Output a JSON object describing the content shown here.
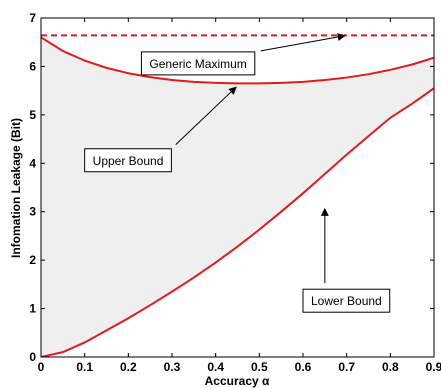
{
  "chart_data": {
    "type": "area",
    "xlabel": "Accuracy α",
    "ylabel": "Infomation Leakage (Bit)",
    "xlim": [
      0,
      0.9
    ],
    "ylim": [
      0,
      7
    ],
    "xticks": [
      "0",
      "0.1",
      "0.2",
      "0.3",
      "0.4",
      "0.5",
      "0.6",
      "0.7",
      "0.8",
      "0.9"
    ],
    "yticks": [
      "0",
      "1",
      "2",
      "3",
      "4",
      "5",
      "6",
      "7"
    ],
    "grid": false,
    "series": [
      {
        "name": "Upper Bound",
        "color": "#e41a1c",
        "style": "solid",
        "x": [
          0,
          0.05,
          0.1,
          0.15,
          0.2,
          0.25,
          0.3,
          0.35,
          0.4,
          0.45,
          0.5,
          0.55,
          0.6,
          0.65,
          0.7,
          0.75,
          0.8,
          0.85,
          0.9
        ],
        "y": [
          6.6,
          6.32,
          6.12,
          5.97,
          5.86,
          5.78,
          5.72,
          5.68,
          5.66,
          5.65,
          5.65,
          5.66,
          5.68,
          5.72,
          5.77,
          5.84,
          5.93,
          6.04,
          6.18
        ]
      },
      {
        "name": "Lower Bound",
        "color": "#e41a1c",
        "style": "solid",
        "x": [
          0,
          0.05,
          0.1,
          0.15,
          0.2,
          0.25,
          0.3,
          0.35,
          0.4,
          0.45,
          0.5,
          0.55,
          0.6,
          0.65,
          0.7,
          0.75,
          0.8,
          0.85,
          0.9
        ],
        "y": [
          0,
          0.1,
          0.3,
          0.55,
          0.8,
          1.07,
          1.35,
          1.64,
          1.95,
          2.28,
          2.63,
          3.0,
          3.38,
          3.78,
          4.18,
          4.56,
          4.94,
          5.23,
          5.55
        ]
      },
      {
        "name": "Generic Maximum",
        "color": "#e41a1c",
        "style": "dashed",
        "x": [
          0,
          0.9
        ],
        "y": [
          6.64,
          6.64
        ]
      }
    ],
    "fill_between": {
      "upper": "Upper Bound",
      "lower": "Lower Bound",
      "color": "#efefef"
    },
    "annotations": [
      {
        "text": "Generic Maximum",
        "box_x": 0.23,
        "box_y": 6.3,
        "arrow_to": [
          0.7,
          6.64
        ]
      },
      {
        "text": "Upper Bound",
        "box_x": 0.1,
        "box_y": 4.3,
        "arrow_to": [
          0.45,
          5.6
        ]
      },
      {
        "text": "Lower Bound",
        "box_x": 0.6,
        "box_y": 1.4,
        "arrow_to": [
          0.65,
          3.1
        ]
      }
    ]
  }
}
